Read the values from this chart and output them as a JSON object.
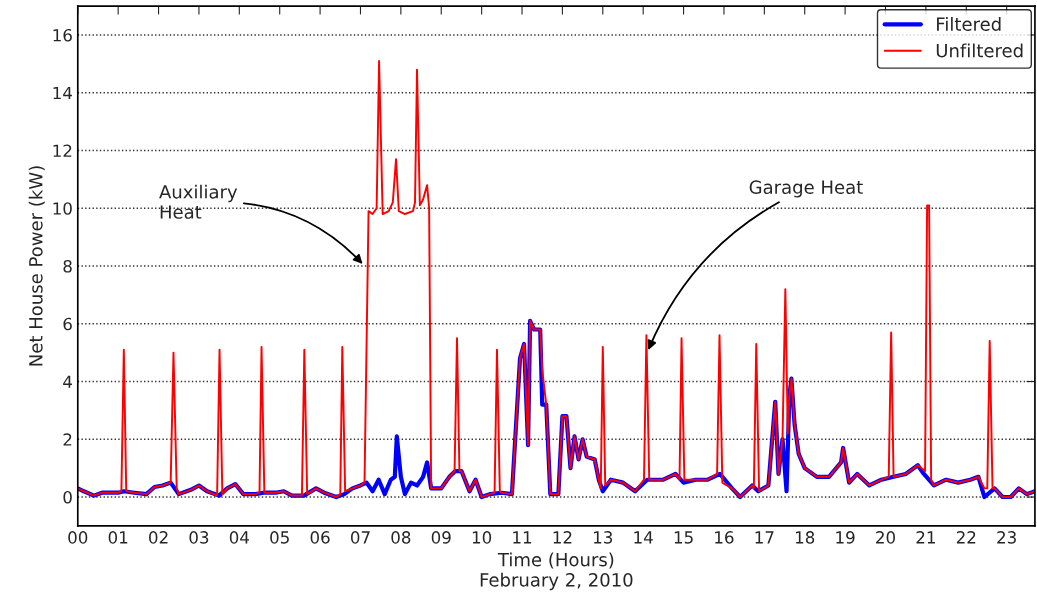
{
  "chart_data": {
    "type": "line",
    "xlabel": "Time (Hours)\nFebruary 2, 2010",
    "ylabel": "Net House Power (kW)",
    "xlim": [
      0,
      23.7
    ],
    "ylim": [
      -1,
      17
    ],
    "xticks": [
      {
        "value": 0,
        "label": "00"
      },
      {
        "value": 1,
        "label": "01"
      },
      {
        "value": 2,
        "label": "02"
      },
      {
        "value": 3,
        "label": "03"
      },
      {
        "value": 4,
        "label": "04"
      },
      {
        "value": 5,
        "label": "05"
      },
      {
        "value": 6,
        "label": "06"
      },
      {
        "value": 7,
        "label": "07"
      },
      {
        "value": 8,
        "label": "08"
      },
      {
        "value": 9,
        "label": "09"
      },
      {
        "value": 10,
        "label": "10"
      },
      {
        "value": 11,
        "label": "11"
      },
      {
        "value": 12,
        "label": "12"
      },
      {
        "value": 13,
        "label": "13"
      },
      {
        "value": 14,
        "label": "14"
      },
      {
        "value": 15,
        "label": "15"
      },
      {
        "value": 16,
        "label": "16"
      },
      {
        "value": 17,
        "label": "17"
      },
      {
        "value": 18,
        "label": "18"
      },
      {
        "value": 19,
        "label": "19"
      },
      {
        "value": 20,
        "label": "20"
      },
      {
        "value": 21,
        "label": "21"
      },
      {
        "value": 22,
        "label": "22"
      },
      {
        "value": 23,
        "label": "23"
      }
    ],
    "yticks": [
      0,
      2,
      4,
      6,
      8,
      10,
      12,
      14,
      16
    ],
    "grid": "y",
    "legend": "top right",
    "line_style": "solid",
    "marker": "none",
    "series": [
      {
        "name": "Filtered",
        "color": "#0000ff",
        "x": [
          0.0,
          0.15,
          0.4,
          0.6,
          1.0,
          1.14,
          1.4,
          1.7,
          1.9,
          2.1,
          2.3,
          2.5,
          2.8,
          3.0,
          3.2,
          3.5,
          3.7,
          3.9,
          4.1,
          4.4,
          4.6,
          4.9,
          5.1,
          5.3,
          5.6,
          5.9,
          6.1,
          6.4,
          6.6,
          6.8,
          7.0,
          7.15,
          7.3,
          7.45,
          7.6,
          7.75,
          7.85,
          7.9,
          8.0,
          8.1,
          8.25,
          8.4,
          8.55,
          8.65,
          8.75,
          9.0,
          9.2,
          9.35,
          9.5,
          9.7,
          9.85,
          10.0,
          10.2,
          10.5,
          10.75,
          10.95,
          11.05,
          11.15,
          11.2,
          11.3,
          11.45,
          11.5,
          11.6,
          11.7,
          11.9,
          12.0,
          12.1,
          12.2,
          12.3,
          12.4,
          12.5,
          12.6,
          12.8,
          12.9,
          13.0,
          13.2,
          13.5,
          13.8,
          14.1,
          14.5,
          14.8,
          15.0,
          15.3,
          15.6,
          15.9,
          16.2,
          16.4,
          16.7,
          16.85,
          17.1,
          17.27,
          17.35,
          17.45,
          17.55,
          17.62,
          17.67,
          17.75,
          17.85,
          18.0,
          18.3,
          18.6,
          18.9,
          18.95,
          19.1,
          19.3,
          19.6,
          19.9,
          20.2,
          20.5,
          20.8,
          20.95,
          21.2,
          21.5,
          21.8,
          22.1,
          22.3,
          22.45,
          22.7,
          22.9,
          23.1,
          23.3,
          23.5,
          23.7
        ],
        "values": [
          0.3,
          0.2,
          0.05,
          0.15,
          0.15,
          0.2,
          0.15,
          0.1,
          0.35,
          0.4,
          0.5,
          0.1,
          0.25,
          0.4,
          0.2,
          0.05,
          0.3,
          0.45,
          0.1,
          0.1,
          0.15,
          0.15,
          0.2,
          0.05,
          0.05,
          0.3,
          0.15,
          0.0,
          0.1,
          0.3,
          0.4,
          0.5,
          0.2,
          0.6,
          0.1,
          0.6,
          0.7,
          2.1,
          0.7,
          0.1,
          0.5,
          0.4,
          0.7,
          1.2,
          0.3,
          0.3,
          0.7,
          0.9,
          0.9,
          0.2,
          0.6,
          0.0,
          0.1,
          0.15,
          0.1,
          4.8,
          5.3,
          1.8,
          6.1,
          5.8,
          5.8,
          3.2,
          3.2,
          0.1,
          0.1,
          2.8,
          2.8,
          1.0,
          2.1,
          1.3,
          2.0,
          1.4,
          1.3,
          0.6,
          0.2,
          0.6,
          0.5,
          0.2,
          0.6,
          0.6,
          0.8,
          0.5,
          0.6,
          0.6,
          0.8,
          0.3,
          0.0,
          0.4,
          0.2,
          0.4,
          3.3,
          0.8,
          2.0,
          0.2,
          3.5,
          4.1,
          2.5,
          1.5,
          1.0,
          0.7,
          0.7,
          1.2,
          1.7,
          0.5,
          0.8,
          0.4,
          0.6,
          0.7,
          0.8,
          1.1,
          0.8,
          0.4,
          0.6,
          0.5,
          0.6,
          0.7,
          0.0,
          0.3,
          0.0,
          0.0,
          0.3,
          0.1,
          0.2
        ]
      },
      {
        "name": "Unfiltered",
        "color": "#ff0000",
        "x": [
          0.0,
          0.15,
          0.4,
          0.6,
          1.0,
          1.08,
          1.14,
          1.2,
          1.4,
          1.7,
          1.9,
          2.1,
          2.3,
          2.37,
          2.45,
          2.5,
          2.8,
          3.0,
          3.2,
          3.45,
          3.51,
          3.58,
          3.7,
          3.9,
          4.1,
          4.4,
          4.5,
          4.55,
          4.62,
          4.9,
          5.1,
          5.3,
          5.55,
          5.61,
          5.68,
          5.9,
          6.1,
          6.4,
          6.5,
          6.55,
          6.62,
          6.8,
          7.0,
          7.1,
          7.2,
          7.3,
          7.4,
          7.46,
          7.55,
          7.7,
          7.8,
          7.88,
          7.95,
          8.1,
          8.3,
          8.35,
          8.4,
          8.47,
          8.55,
          8.65,
          8.7,
          8.75,
          9.0,
          9.2,
          9.33,
          9.39,
          9.45,
          9.5,
          9.7,
          9.85,
          10.0,
          10.2,
          10.32,
          10.38,
          10.45,
          10.5,
          10.75,
          10.95,
          11.05,
          11.15,
          11.2,
          11.3,
          11.45,
          11.5,
          11.6,
          11.7,
          11.9,
          12.0,
          12.1,
          12.2,
          12.3,
          12.4,
          12.5,
          12.6,
          12.8,
          12.9,
          12.95,
          13.0,
          13.06,
          13.2,
          13.5,
          13.8,
          14.02,
          14.08,
          14.15,
          14.5,
          14.8,
          14.9,
          14.95,
          15.02,
          15.3,
          15.6,
          15.83,
          15.89,
          15.96,
          16.2,
          16.4,
          16.7,
          16.74,
          16.8,
          16.87,
          17.1,
          17.27,
          17.35,
          17.45,
          17.52,
          17.58,
          17.62,
          17.67,
          17.75,
          17.85,
          18.0,
          18.3,
          18.6,
          18.9,
          18.95,
          19.1,
          19.3,
          19.6,
          19.9,
          20.08,
          20.14,
          20.2,
          20.5,
          20.8,
          20.98,
          21.03,
          21.08,
          21.13,
          21.2,
          21.5,
          21.8,
          22.1,
          22.3,
          22.45,
          22.52,
          22.58,
          22.65,
          22.7,
          22.9,
          23.1,
          23.3,
          23.5,
          23.7
        ],
        "values": [
          0.3,
          0.2,
          0.05,
          0.15,
          0.15,
          0.2,
          5.1,
          0.2,
          0.15,
          0.1,
          0.35,
          0.4,
          0.5,
          5.0,
          0.3,
          0.1,
          0.25,
          0.4,
          0.2,
          0.05,
          5.1,
          0.1,
          0.3,
          0.45,
          0.1,
          0.1,
          0.15,
          5.2,
          0.15,
          0.15,
          0.2,
          0.05,
          0.05,
          5.1,
          0.1,
          0.3,
          0.15,
          0.0,
          0.1,
          5.2,
          0.2,
          0.3,
          0.4,
          0.5,
          9.9,
          9.8,
          10.0,
          15.1,
          9.8,
          9.9,
          10.2,
          11.7,
          9.9,
          9.8,
          9.9,
          10.2,
          14.8,
          10.1,
          10.3,
          10.8,
          10.0,
          0.3,
          0.3,
          0.7,
          0.9,
          5.5,
          0.9,
          0.9,
          0.2,
          0.6,
          0.0,
          0.1,
          0.15,
          5.1,
          0.2,
          0.15,
          0.1,
          4.8,
          5.3,
          1.8,
          6.1,
          5.8,
          5.8,
          4.4,
          3.2,
          0.1,
          0.1,
          2.8,
          2.8,
          1.0,
          2.1,
          1.3,
          2.0,
          1.4,
          1.3,
          0.6,
          0.3,
          5.2,
          0.4,
          0.6,
          0.5,
          0.2,
          0.6,
          5.6,
          0.6,
          0.6,
          0.8,
          0.6,
          5.5,
          0.6,
          0.6,
          0.6,
          0.8,
          5.6,
          0.5,
          0.3,
          0.0,
          0.4,
          0.3,
          5.3,
          0.2,
          0.4,
          3.3,
          0.8,
          2.0,
          7.2,
          2.2,
          3.5,
          4.1,
          2.5,
          1.5,
          1.0,
          0.7,
          0.7,
          1.2,
          1.7,
          0.5,
          0.8,
          0.4,
          0.6,
          0.7,
          5.7,
          0.7,
          0.8,
          1.1,
          0.9,
          10.1,
          10.1,
          0.6,
          0.4,
          0.6,
          0.5,
          0.6,
          0.7,
          0.3,
          0.3,
          5.4,
          0.3,
          0.3,
          0.0,
          0.0,
          0.3,
          0.1,
          0.2
        ]
      }
    ],
    "annotations": [
      {
        "text": "Auxiliary\nHeat",
        "x": 7.1,
        "y": 8.0
      },
      {
        "text": "Garage Heat",
        "x": 14.1,
        "y": 5.0
      }
    ]
  }
}
